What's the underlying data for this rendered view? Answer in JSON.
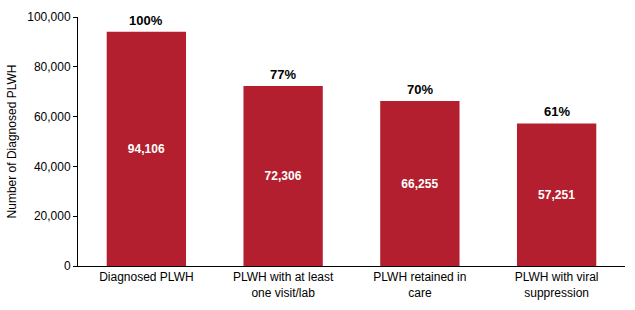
{
  "chart_data": {
    "type": "bar",
    "y_label": "Number of Diagnosed PLWH",
    "categories": [
      "Diagnosed PLWH",
      "PLWH with at least one visit/lab",
      "PLWH retained in care",
      "PLWH with viral suppression"
    ],
    "values": [
      94106,
      72306,
      66255,
      57251
    ],
    "value_labels": [
      "94,106",
      "72,306",
      "66,255",
      "57,251"
    ],
    "data_labels": true,
    "percent_values": [
      100,
      77,
      70,
      61
    ],
    "percent_labels": [
      "100%",
      "77%",
      "70%",
      "61%"
    ],
    "color": "#b31f2e",
    "ylim": [
      0,
      100000
    ],
    "yticks": [
      0,
      {
        "value": 20000,
        "label": "20,000"
      },
      {
        "value": 40000,
        "label": "40,000"
      },
      {
        "value": 60000,
        "label": "60,000"
      },
      {
        "value": 80000,
        "label": "80,000"
      },
      {
        "value": 100000,
        "label": "100,000"
      }
    ],
    "grid": false
  }
}
